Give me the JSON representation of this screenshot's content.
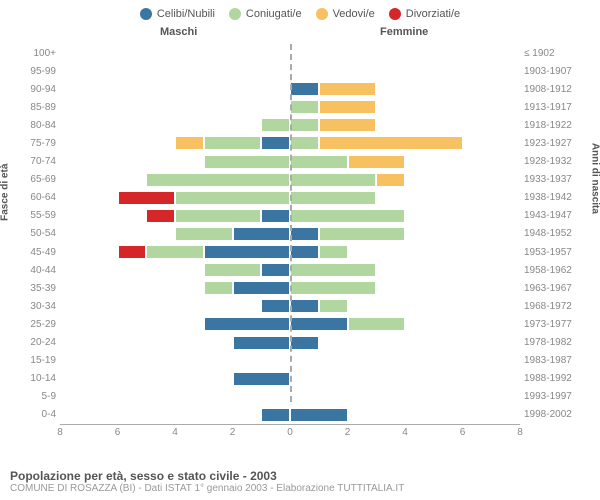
{
  "chart": {
    "type": "population-pyramid",
    "legend": [
      {
        "label": "Celibi/Nubili",
        "color": "#3b76a3"
      },
      {
        "label": "Coniugati/e",
        "color": "#b2d6a0"
      },
      {
        "label": "Vedovi/e",
        "color": "#f7c162"
      },
      {
        "label": "Divorziati/e",
        "color": "#d62728"
      }
    ],
    "header_male": "Maschi",
    "header_female": "Femmine",
    "y_left_title": "Fasce di età",
    "y_right_title": "Anni di nascita",
    "xmax": 8,
    "xticks": [
      8,
      6,
      4,
      2,
      0,
      2,
      4,
      6,
      8
    ],
    "rows": [
      {
        "age": "100+",
        "birth": "≤ 1902",
        "m": {
          "cel": 0,
          "con": 0,
          "ved": 0,
          "div": 0
        },
        "f": {
          "cel": 0,
          "con": 0,
          "ved": 0,
          "div": 0
        }
      },
      {
        "age": "95-99",
        "birth": "1903-1907",
        "m": {
          "cel": 0,
          "con": 0,
          "ved": 0,
          "div": 0
        },
        "f": {
          "cel": 0,
          "con": 0,
          "ved": 0,
          "div": 0
        }
      },
      {
        "age": "90-94",
        "birth": "1908-1912",
        "m": {
          "cel": 0,
          "con": 0,
          "ved": 0,
          "div": 0
        },
        "f": {
          "cel": 1,
          "con": 0,
          "ved": 2,
          "div": 0
        }
      },
      {
        "age": "85-89",
        "birth": "1913-1917",
        "m": {
          "cel": 0,
          "con": 0,
          "ved": 0,
          "div": 0
        },
        "f": {
          "cel": 0,
          "con": 1,
          "ved": 2,
          "div": 0
        }
      },
      {
        "age": "80-84",
        "birth": "1918-1922",
        "m": {
          "cel": 0,
          "con": 1,
          "ved": 0,
          "div": 0
        },
        "f": {
          "cel": 0,
          "con": 1,
          "ved": 2,
          "div": 0
        }
      },
      {
        "age": "75-79",
        "birth": "1923-1927",
        "m": {
          "cel": 1,
          "con": 2,
          "ved": 1,
          "div": 0
        },
        "f": {
          "cel": 0,
          "con": 1,
          "ved": 5,
          "div": 0
        }
      },
      {
        "age": "70-74",
        "birth": "1928-1932",
        "m": {
          "cel": 0,
          "con": 3,
          "ved": 0,
          "div": 0
        },
        "f": {
          "cel": 0,
          "con": 2,
          "ved": 2,
          "div": 0
        }
      },
      {
        "age": "65-69",
        "birth": "1933-1937",
        "m": {
          "cel": 0,
          "con": 5,
          "ved": 0,
          "div": 0
        },
        "f": {
          "cel": 0,
          "con": 3,
          "ved": 1,
          "div": 0
        }
      },
      {
        "age": "60-64",
        "birth": "1938-1942",
        "m": {
          "cel": 0,
          "con": 4,
          "ved": 0,
          "div": 2
        },
        "f": {
          "cel": 0,
          "con": 3,
          "ved": 0,
          "div": 0
        }
      },
      {
        "age": "55-59",
        "birth": "1943-1947",
        "m": {
          "cel": 1,
          "con": 3,
          "ved": 0,
          "div": 1
        },
        "f": {
          "cel": 0,
          "con": 4,
          "ved": 0,
          "div": 0
        }
      },
      {
        "age": "50-54",
        "birth": "1948-1952",
        "m": {
          "cel": 2,
          "con": 2,
          "ved": 0,
          "div": 0
        },
        "f": {
          "cel": 1,
          "con": 3,
          "ved": 0,
          "div": 0
        }
      },
      {
        "age": "45-49",
        "birth": "1953-1957",
        "m": {
          "cel": 3,
          "con": 2,
          "ved": 0,
          "div": 1
        },
        "f": {
          "cel": 1,
          "con": 1,
          "ved": 0,
          "div": 0
        }
      },
      {
        "age": "40-44",
        "birth": "1958-1962",
        "m": {
          "cel": 1,
          "con": 2,
          "ved": 0,
          "div": 0
        },
        "f": {
          "cel": 0,
          "con": 3,
          "ved": 0,
          "div": 0
        }
      },
      {
        "age": "35-39",
        "birth": "1963-1967",
        "m": {
          "cel": 2,
          "con": 1,
          "ved": 0,
          "div": 0
        },
        "f": {
          "cel": 0,
          "con": 3,
          "ved": 0,
          "div": 0
        }
      },
      {
        "age": "30-34",
        "birth": "1968-1972",
        "m": {
          "cel": 1,
          "con": 0,
          "ved": 0,
          "div": 0
        },
        "f": {
          "cel": 1,
          "con": 1,
          "ved": 0,
          "div": 0
        }
      },
      {
        "age": "25-29",
        "birth": "1973-1977",
        "m": {
          "cel": 3,
          "con": 0,
          "ved": 0,
          "div": 0
        },
        "f": {
          "cel": 2,
          "con": 2,
          "ved": 0,
          "div": 0
        }
      },
      {
        "age": "20-24",
        "birth": "1978-1982",
        "m": {
          "cel": 2,
          "con": 0,
          "ved": 0,
          "div": 0
        },
        "f": {
          "cel": 1,
          "con": 0,
          "ved": 0,
          "div": 0
        }
      },
      {
        "age": "15-19",
        "birth": "1983-1987",
        "m": {
          "cel": 0,
          "con": 0,
          "ved": 0,
          "div": 0
        },
        "f": {
          "cel": 0,
          "con": 0,
          "ved": 0,
          "div": 0
        }
      },
      {
        "age": "10-14",
        "birth": "1988-1992",
        "m": {
          "cel": 2,
          "con": 0,
          "ved": 0,
          "div": 0
        },
        "f": {
          "cel": 0,
          "con": 0,
          "ved": 0,
          "div": 0
        }
      },
      {
        "age": "5-9",
        "birth": "1993-1997",
        "m": {
          "cel": 0,
          "con": 0,
          "ved": 0,
          "div": 0
        },
        "f": {
          "cel": 0,
          "con": 0,
          "ved": 0,
          "div": 0
        }
      },
      {
        "age": "0-4",
        "birth": "1998-2002",
        "m": {
          "cel": 1,
          "con": 0,
          "ved": 0,
          "div": 0
        },
        "f": {
          "cel": 2,
          "con": 0,
          "ved": 0,
          "div": 0
        }
      }
    ],
    "colors": {
      "cel": "#3b76a3",
      "con": "#b2d6a0",
      "ved": "#f7c162",
      "div": "#d62728",
      "grid": "#aaa",
      "bg": "#ffffff"
    }
  },
  "footer": {
    "title": "Popolazione per età, sesso e stato civile - 2003",
    "subtitle": "COMUNE DI ROSAZZA (BI) - Dati ISTAT 1° gennaio 2003 - Elaborazione TUTTITALIA.IT"
  }
}
